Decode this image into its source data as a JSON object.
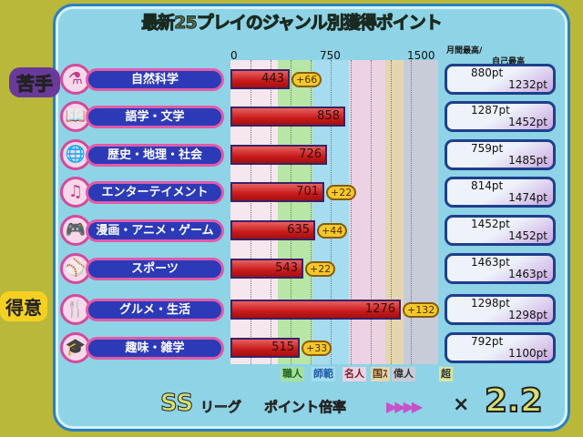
{
  "title": "最新25プレイのジャンル別獲得ポイント",
  "axis": {
    "ticks": [
      "0",
      "750",
      "1500"
    ],
    "max": 1500,
    "best_header_line1": "月間最高/",
    "best_header_line2": "自己最高"
  },
  "weak_label": "苦手",
  "strong_label": "得意",
  "ranks": [
    "職人",
    "師範",
    "名人",
    "国ｽ",
    "偉人",
    "超"
  ],
  "genres": [
    {
      "name": "自然科学",
      "icon": "flask-icon",
      "glyph": "⚗",
      "points": 443,
      "bonus": "+66",
      "monthly": "880pt",
      "self": "1232pt"
    },
    {
      "name": "語学・文学",
      "icon": "book-icon",
      "glyph": "📖",
      "points": 858,
      "bonus": "",
      "monthly": "1287pt",
      "self": "1452pt"
    },
    {
      "name": "歴史・地理・社会",
      "icon": "globe-icon",
      "glyph": "🌐",
      "points": 726,
      "bonus": "",
      "monthly": "759pt",
      "self": "1485pt"
    },
    {
      "name": "エンターテイメント",
      "icon": "music-note-icon",
      "glyph": "♫",
      "points": 701,
      "bonus": "+22",
      "monthly": "814pt",
      "self": "1474pt"
    },
    {
      "name": "漫画・アニメ・ゲーム",
      "icon": "gamepad-icon",
      "glyph": "🎮",
      "points": 635,
      "bonus": "+44",
      "monthly": "1452pt",
      "self": "1452pt"
    },
    {
      "name": "スポーツ",
      "icon": "ball-icon",
      "glyph": "⚾",
      "points": 543,
      "bonus": "+22",
      "monthly": "1463pt",
      "self": "1463pt"
    },
    {
      "name": "グルメ・生活",
      "icon": "cutlery-icon",
      "glyph": "🍴",
      "points": 1276,
      "bonus": "+132",
      "monthly": "1298pt",
      "self": "1298pt"
    },
    {
      "name": "趣味・雑学",
      "icon": "graduation-cap-icon",
      "glyph": "🎓",
      "points": 515,
      "bonus": "+33",
      "monthly": "792pt",
      "self": "1100pt"
    }
  ],
  "footer": {
    "league": "SS",
    "league_text": "リーグ",
    "multiplier_label": "ポイント倍率",
    "arrows": "▶▶▶▶",
    "times": "×",
    "multiplier": "2.2"
  }
}
